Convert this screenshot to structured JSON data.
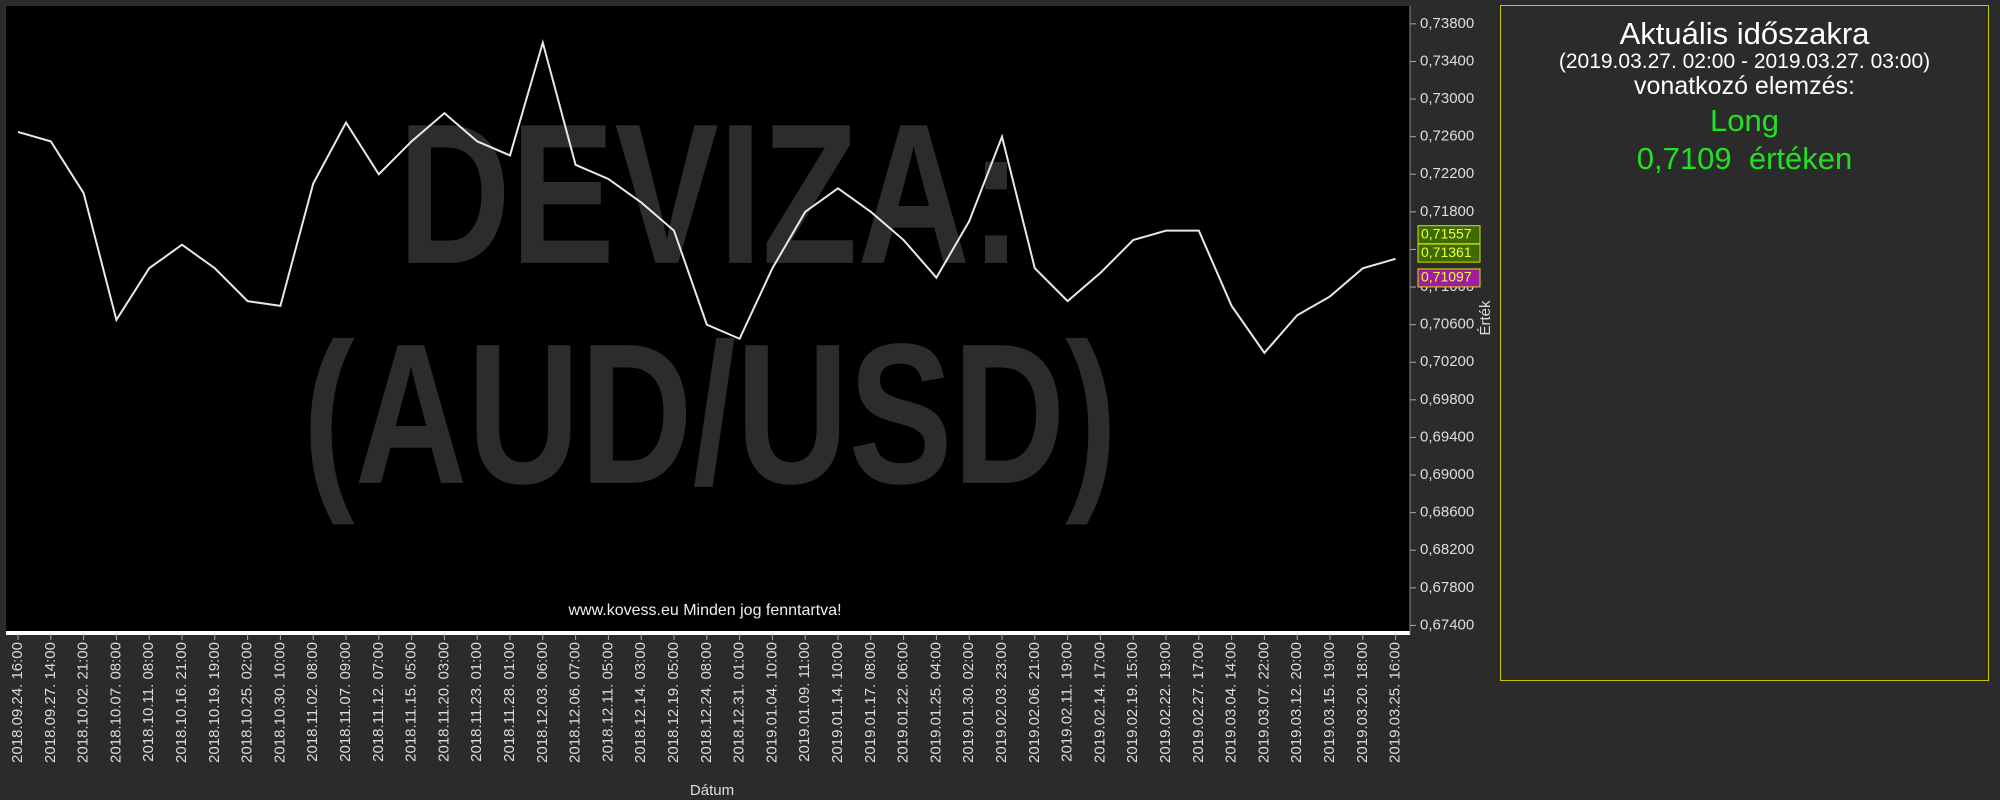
{
  "chart_data": {
    "type": "line",
    "watermark": [
      "DEVIZA:",
      "(AUD/USD)"
    ],
    "footer": "www.kovess.eu Minden jog fenntartva!",
    "x_label": "Dátum",
    "y_label": "Érték",
    "categories": [
      "2018.09.24. 16:00",
      "2018.09.27. 14:00",
      "2018.10.02. 21:00",
      "2018.10.07. 08:00",
      "2018.10.11. 08:00",
      "2018.10.16. 21:00",
      "2018.10.19. 19:00",
      "2018.10.25. 02:00",
      "2018.10.30. 10:00",
      "2018.11.02. 08:00",
      "2018.11.07. 09:00",
      "2018.11.12. 07:00",
      "2018.11.15. 05:00",
      "2018.11.20. 03:00",
      "2018.11.23. 01:00",
      "2018.11.28. 01:00",
      "2018.12.03. 06:00",
      "2018.12.06. 07:00",
      "2018.12.11. 05:00",
      "2018.12.14. 03:00",
      "2018.12.19. 05:00",
      "2018.12.24. 08:00",
      "2018.12.31. 01:00",
      "2019.01.04. 10:00",
      "2019.01.09. 11:00",
      "2019.01.14. 10:00",
      "2019.01.17. 08:00",
      "2019.01.22. 06:00",
      "2019.01.25. 04:00",
      "2019.01.30. 02:00",
      "2019.02.03. 23:00",
      "2019.02.06. 21:00",
      "2019.02.11. 19:00",
      "2019.02.14. 17:00",
      "2019.02.19. 15:00",
      "2019.02.22. 19:00",
      "2019.02.27. 17:00",
      "2019.03.04. 14:00",
      "2019.03.07. 22:00",
      "2019.03.12. 20:00",
      "2019.03.15. 19:00",
      "2019.03.20. 18:00",
      "2019.03.25. 16:00"
    ],
    "values": [
      0.7265,
      0.7255,
      0.72,
      0.7065,
      0.712,
      0.7145,
      0.712,
      0.7085,
      0.708,
      0.721,
      0.7275,
      0.722,
      0.7255,
      0.7285,
      0.7255,
      0.724,
      0.736,
      0.723,
      0.7215,
      0.719,
      0.716,
      0.706,
      0.7045,
      0.712,
      0.718,
      0.7205,
      0.718,
      0.715,
      0.711,
      0.717,
      0.726,
      0.712,
      0.7085,
      0.7115,
      0.715,
      0.716,
      0.716,
      0.708,
      0.703,
      0.707,
      0.709,
      0.712,
      0.713
    ],
    "color": "#e8e8e8",
    "ylim": [
      0.6733,
      0.7399
    ],
    "yticks": [
      {
        "value": 0.738,
        "label": "0,73800"
      },
      {
        "value": 0.734,
        "label": "0,73400"
      },
      {
        "value": 0.73,
        "label": "0,73000"
      },
      {
        "value": 0.726,
        "label": "0,72600"
      },
      {
        "value": 0.722,
        "label": "0,72200"
      },
      {
        "value": 0.718,
        "label": "0,71800"
      },
      {
        "value": 0.714,
        "label": "0,71400"
      },
      {
        "value": 0.71,
        "label": "0,71000"
      },
      {
        "value": 0.706,
        "label": "0,70600"
      },
      {
        "value": 0.702,
        "label": "0,70200"
      },
      {
        "value": 0.698,
        "label": "0,69800"
      },
      {
        "value": 0.694,
        "label": "0,69400"
      },
      {
        "value": 0.69,
        "label": "0,69000"
      },
      {
        "value": 0.686,
        "label": "0,68600"
      },
      {
        "value": 0.682,
        "label": "0,68200"
      },
      {
        "value": 0.678,
        "label": "0,67800"
      },
      {
        "value": 0.674,
        "label": "0,67400"
      }
    ],
    "price_tags": [
      {
        "value": 0.71557,
        "label": "0,71557",
        "color": "#3d6b00"
      },
      {
        "value": 0.71361,
        "label": "0,71361",
        "color": "#3d6b00"
      },
      {
        "value": 0.71097,
        "label": "0,71097",
        "color": "#a01ca0"
      }
    ]
  },
  "panel": {
    "title": "Aktuális időszakra",
    "period": "(2019.03.27. 02:00 - 2019.03.27. 03:00)",
    "subtitle": "vonatkozó elemzés:",
    "signal": "Long",
    "price": "0,7109",
    "price_suffix": "értéken"
  }
}
